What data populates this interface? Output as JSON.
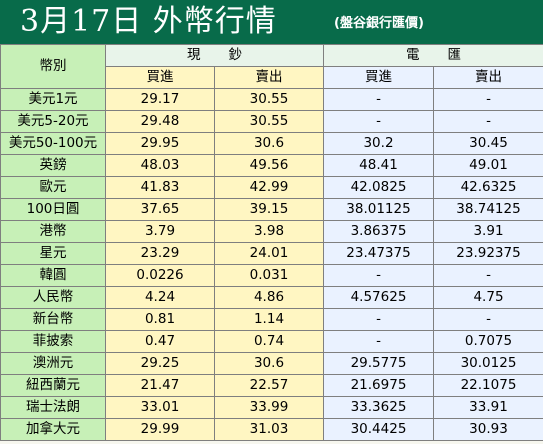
{
  "header": {
    "title": "3月17日 外幣行情",
    "subtitle": "(盤谷銀行匯價)"
  },
  "table": {
    "currency_label": "幣別",
    "cash_label": "現鈔",
    "wire_label": "電匯",
    "buy_label": "買進",
    "sell_label": "賣出",
    "rows": [
      {
        "name": "美元1元",
        "cash_buy": "29.17",
        "cash_sell": "30.55",
        "wire_buy": "-",
        "wire_sell": "-"
      },
      {
        "name": "美元5-20元",
        "cash_buy": "29.48",
        "cash_sell": "30.55",
        "wire_buy": "-",
        "wire_sell": "-"
      },
      {
        "name": "美元50-100元",
        "cash_buy": "29.95",
        "cash_sell": "30.6",
        "wire_buy": "30.2",
        "wire_sell": "30.45"
      },
      {
        "name": "英鎊",
        "cash_buy": "48.03",
        "cash_sell": "49.56",
        "wire_buy": "48.41",
        "wire_sell": "49.01"
      },
      {
        "name": "歐元",
        "cash_buy": "41.83",
        "cash_sell": "42.99",
        "wire_buy": "42.0825",
        "wire_sell": "42.6325"
      },
      {
        "name": "100日圓",
        "cash_buy": "37.65",
        "cash_sell": "39.15",
        "wire_buy": "38.01125",
        "wire_sell": "38.74125"
      },
      {
        "name": "港幣",
        "cash_buy": "3.79",
        "cash_sell": "3.98",
        "wire_buy": "3.86375",
        "wire_sell": "3.91"
      },
      {
        "name": "星元",
        "cash_buy": "23.29",
        "cash_sell": "24.01",
        "wire_buy": "23.47375",
        "wire_sell": "23.92375"
      },
      {
        "name": "韓圓",
        "cash_buy": "0.0226",
        "cash_sell": "0.031",
        "wire_buy": "-",
        "wire_sell": "-"
      },
      {
        "name": "人民幣",
        "cash_buy": "4.24",
        "cash_sell": "4.86",
        "wire_buy": "4.57625",
        "wire_sell": "4.75"
      },
      {
        "name": "新台幣",
        "cash_buy": "0.81",
        "cash_sell": "1.14",
        "wire_buy": "-",
        "wire_sell": "-"
      },
      {
        "name": "菲披索",
        "cash_buy": "0.47",
        "cash_sell": "0.74",
        "wire_buy": "-",
        "wire_sell": "0.7075"
      },
      {
        "name": "澳洲元",
        "cash_buy": "29.25",
        "cash_sell": "30.6",
        "wire_buy": "29.5775",
        "wire_sell": "30.0125"
      },
      {
        "name": "紐西蘭元",
        "cash_buy": "21.47",
        "cash_sell": "22.57",
        "wire_buy": "21.6975",
        "wire_sell": "22.1075"
      },
      {
        "name": "瑞士法朗",
        "cash_buy": "33.01",
        "cash_sell": "33.99",
        "wire_buy": "33.3625",
        "wire_sell": "33.91"
      },
      {
        "name": "加拿大元",
        "cash_buy": "29.99",
        "cash_sell": "31.03",
        "wire_buy": "30.4425",
        "wire_sell": "30.93"
      }
    ]
  },
  "colors": {
    "header_bg": "#086b4a",
    "currency_col_bg": "#c7f0b7",
    "cash_col_bg": "#fff6c2",
    "wire_col_bg": "#eaf2ff"
  }
}
